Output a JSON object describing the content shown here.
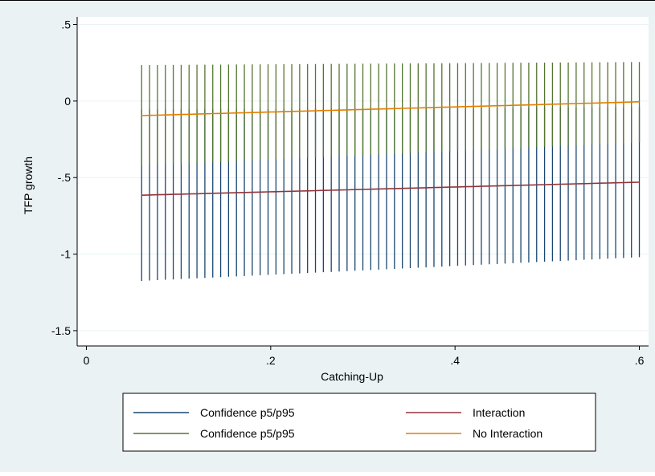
{
  "chart_data": {
    "type": "line",
    "title": "",
    "xlabel": "Catching-Up",
    "ylabel": "TFP growth",
    "xlim": [
      -0.01,
      0.61
    ],
    "ylim": [
      -1.6,
      0.55
    ],
    "xticks": [
      0,
      0.2,
      0.4,
      0.6
    ],
    "xtick_labels": [
      "0",
      ".2",
      ".4",
      ".6"
    ],
    "yticks": [
      0.5,
      0,
      -0.5,
      -1,
      -1.5
    ],
    "ytick_labels": [
      ".5",
      "0",
      "-.5",
      "-1",
      "-1.5"
    ],
    "grid": "horizontal",
    "legend_position": "bottom",
    "x_range": {
      "start": 0.06,
      "end": 0.6,
      "count": 64
    },
    "series": [
      {
        "name": "Confidence p5/p95",
        "type": "rcap",
        "color": "#1a476f",
        "low": [
          -1.175,
          -1.02
        ],
        "high": [
          -0.055,
          -0.04
        ]
      },
      {
        "name": "Interaction",
        "type": "line",
        "color": "#90353b",
        "values": [
          -0.615,
          -0.53
        ]
      },
      {
        "name": "Confidence p5/p95",
        "type": "rcap",
        "color": "#55752f",
        "low": [
          -0.42,
          -0.27
        ],
        "high": [
          0.235,
          0.255
        ]
      },
      {
        "name": "No Interaction",
        "type": "line",
        "color": "#e37e00",
        "values": [
          -0.095,
          -0.005
        ]
      }
    ]
  }
}
